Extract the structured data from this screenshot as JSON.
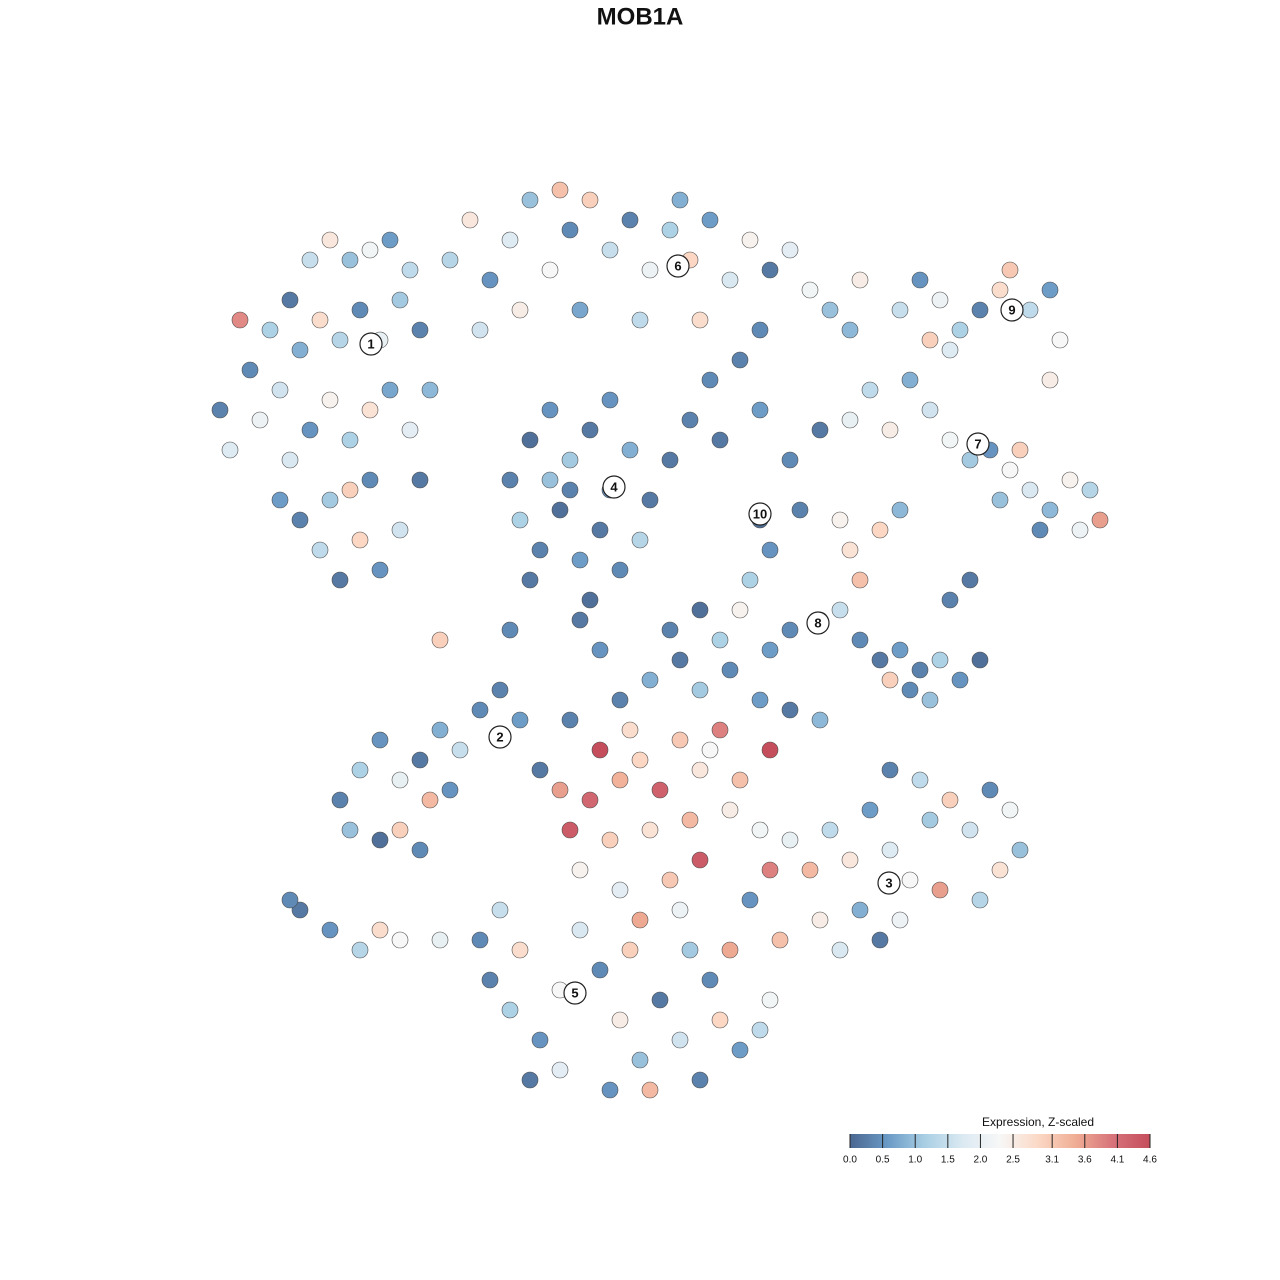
{
  "chart_data": {
    "type": "scatter",
    "title": "MOB1A",
    "colorbar_title": "Expression, Z-scaled",
    "colorbar_ticks": [
      {
        "value": 0,
        "label": "0.0"
      },
      {
        "value": 0.5,
        "label": "0.5"
      },
      {
        "value": 1,
        "label": "1.0"
      },
      {
        "value": 1.5,
        "label": "1.5"
      },
      {
        "value": 2,
        "label": "2.0"
      },
      {
        "value": 2.5,
        "label": "2.5"
      },
      {
        "value": 3.1,
        "label": "3.1"
      },
      {
        "value": 3.6,
        "label": "3.6"
      },
      {
        "value": 4.1,
        "label": "4.1"
      },
      {
        "value": 4.6,
        "label": "4.6"
      }
    ],
    "colors": [
      "#4a6790",
      "#6a9ac6",
      "#a9cfe4",
      "#dbe9f2",
      "#f7f7f7",
      "#fbd9c6",
      "#f0ae95",
      "#d7737a",
      "#c44e5c"
    ],
    "cluster_labels": [
      {
        "text": "1",
        "x": -26.9,
        "y": 29.6
      },
      {
        "text": "2",
        "x": -14,
        "y": -9.7
      },
      {
        "text": "3",
        "x": 24.9,
        "y": -24.3
      },
      {
        "text": "4",
        "x": -2.6,
        "y": 15.3
      },
      {
        "text": "5",
        "x": -6.5,
        "y": -35.3
      },
      {
        "text": "6",
        "x": 3.8,
        "y": 37.4
      },
      {
        "text": "7",
        "x": 33.8,
        "y": 19.6
      },
      {
        "text": "8",
        "x": 17.8,
        "y": 1.7
      },
      {
        "text": "9",
        "x": 37.2,
        "y": 33
      },
      {
        "text": "10",
        "x": 12,
        "y": 12.6
      }
    ],
    "x": [
      -42,
      -41,
      -39,
      -37,
      -35,
      -33,
      -31,
      -29,
      -27,
      -25,
      -23,
      -38,
      -36,
      -34,
      -32,
      -30,
      -28,
      -26,
      -24,
      -22,
      -35,
      -33,
      -31,
      -29,
      -27,
      -25,
      -23,
      -34,
      -32,
      -30,
      -28,
      -26,
      -24,
      -29,
      -31,
      -27,
      -40,
      -21,
      -22,
      -36,
      -19,
      -17,
      -15,
      -13,
      -11,
      -9,
      -7,
      -5,
      -3,
      -1,
      1,
      3,
      5,
      7,
      9,
      11,
      13,
      15,
      17,
      19,
      -12,
      -6,
      0,
      6,
      12,
      -8,
      -16,
      4,
      -13,
      -11,
      -9,
      -7,
      -5,
      -3,
      -1,
      1,
      -12,
      -10,
      -8,
      -6,
      -4,
      -2,
      0,
      -7,
      -11,
      -3,
      -5,
      -9,
      5,
      8,
      12,
      15,
      12,
      13,
      11,
      16,
      18,
      7,
      10,
      3,
      21,
      23,
      25,
      27,
      29,
      31,
      33,
      35,
      37,
      39,
      41,
      43,
      45,
      46,
      44,
      38,
      36,
      40,
      26,
      28,
      30,
      32,
      34,
      36,
      37,
      39,
      41,
      42,
      41,
      29,
      31,
      21,
      20,
      21,
      22,
      20,
      22,
      24,
      26,
      28,
      30,
      32,
      34,
      25,
      27,
      29,
      31,
      33,
      18,
      15,
      13,
      24,
      26,
      -30,
      -28,
      -26,
      -24,
      -22,
      -20,
      -18,
      -16,
      -14,
      -12,
      -10,
      -24,
      -22,
      -26,
      -29,
      -21,
      -14,
      -19,
      -34,
      -31,
      -28,
      -26,
      -24,
      -35,
      -20,
      -4,
      -2,
      0,
      2,
      4,
      6,
      8,
      10,
      13,
      -5,
      -7,
      -3,
      1,
      5,
      9,
      12,
      -6,
      -2,
      3,
      6,
      0,
      4,
      -8,
      -1,
      7,
      15,
      17,
      19,
      21,
      23,
      25,
      27,
      29,
      31,
      33,
      35,
      37,
      38,
      36,
      34,
      30,
      26,
      22,
      18,
      14,
      20,
      24,
      11,
      13,
      25,
      28,
      -2,
      1,
      4,
      6,
      9,
      12,
      15,
      18,
      3,
      6,
      8,
      -4,
      -7,
      10,
      -13,
      -20,
      -6,
      -14,
      -12,
      -15,
      -13,
      -10,
      -8,
      -6,
      -4,
      -2,
      0,
      2,
      4,
      6,
      8,
      10,
      12,
      -11,
      -8,
      -3,
      1,
      5,
      7,
      9,
      13,
      -16,
      -1,
      22
    ],
    "y": [
      23,
      19,
      27,
      31,
      34,
      38,
      40,
      38,
      39,
      40,
      37,
      22,
      25,
      29,
      32,
      30,
      33,
      30,
      34,
      31,
      18,
      21,
      24,
      20,
      23,
      25,
      21,
      12,
      9,
      6,
      10,
      7,
      11,
      15,
      14,
      16,
      32,
      25,
      16,
      14,
      38,
      42,
      36,
      40,
      44,
      37,
      41,
      44,
      39,
      42,
      37,
      41,
      38,
      42,
      36,
      40,
      37,
      39,
      35,
      33,
      33,
      33,
      32,
      32,
      31,
      45,
      31,
      44,
      16,
      20,
      23,
      18,
      21,
      15,
      19,
      14,
      12,
      9,
      13,
      8,
      11,
      7,
      10,
      15,
      6,
      24,
      4,
      16,
      22,
      20,
      23,
      18,
      12,
      9,
      6,
      13,
      21,
      26,
      28,
      18,
      22,
      25,
      21,
      26,
      23,
      20,
      18,
      19,
      17,
      15,
      13,
      16,
      15,
      12,
      11,
      19,
      14,
      11,
      33,
      36,
      34,
      31,
      33,
      35,
      37,
      33,
      35,
      30,
      26,
      30,
      29,
      31,
      12,
      9,
      6,
      3,
      0,
      -2,
      -1,
      -3,
      -2,
      -4,
      -2,
      -4,
      -5,
      -6,
      4,
      6,
      2,
      1,
      -1,
      11,
      13,
      -16,
      -13,
      -10,
      -14,
      -12,
      -9,
      -11,
      -7,
      -5,
      -8,
      -13,
      -19,
      -21,
      -20,
      -19,
      -16,
      -10,
      -15,
      -27,
      -29,
      -31,
      -29,
      -30,
      -26,
      -30,
      -11,
      -14,
      -12,
      -15,
      -10,
      -13,
      -9,
      -14,
      -11,
      -16,
      -19,
      -20,
      -19,
      -18,
      -17,
      -19,
      -23,
      -25,
      -24,
      -22,
      -28,
      -27,
      -15,
      -9,
      -11,
      -20,
      -23,
      -19,
      -22,
      -17,
      -21,
      -24,
      -18,
      -16,
      -19,
      -15,
      -17,
      -21,
      -23,
      -26,
      -25,
      -28,
      -27,
      -28,
      -30,
      -31,
      -30,
      -26,
      -23,
      -13,
      -14,
      -6,
      -4,
      -2,
      -5,
      -3,
      -6,
      -7,
      -8,
      1,
      3,
      0,
      -1,
      -8,
      3,
      1,
      0,
      2,
      -27,
      -31,
      -34,
      -37,
      -40,
      -35,
      -29,
      -33,
      -38,
      -42,
      -36,
      -40,
      -44,
      -38,
      -41,
      -39,
      -44,
      -43,
      -45,
      -45,
      -31,
      -34,
      -31,
      -36,
      -30,
      -31,
      36
    ],
    "values": [
      0.3,
      1.8,
      0.4,
      1.2,
      0.2,
      1.5,
      2.6,
      1.0,
      2.2,
      0.6,
      1.4,
      2.1,
      1.6,
      0.8,
      2.8,
      1.3,
      0.4,
      2.0,
      1.1,
      0.3,
      1.7,
      0.5,
      2.4,
      1.2,
      2.7,
      0.7,
      1.9,
      0.3,
      1.4,
      0.2,
      2.9,
      0.5,
      1.6,
      3.0,
      1.1,
      0.4,
      3.8,
      0.9,
      0.2,
      0.6,
      1.3,
      2.6,
      0.5,
      1.8,
      1.0,
      2.3,
      0.4,
      3.0,
      1.5,
      0.3,
      2.1,
      1.2,
      2.9,
      0.6,
      1.7,
      2.4,
      0.2,
      1.9,
      2.2,
      1.0,
      2.5,
      0.7,
      1.4,
      2.8,
      0.4,
      3.2,
      1.6,
      0.8,
      0.3,
      0.1,
      0.5,
      1.1,
      0.2,
      0.4,
      0.8,
      0.2,
      1.2,
      0.3,
      0.1,
      0.6,
      0.2,
      0.4,
      1.3,
      0.3,
      0.2,
      0.5,
      0.1,
      1.0,
      0.3,
      0.2,
      0.6,
      0.4,
      0.1,
      0.5,
      1.2,
      0.3,
      0.2,
      0.4,
      0.3,
      0.2,
      2.0,
      1.4,
      2.5,
      0.8,
      1.6,
      2.2,
      1.1,
      0.5,
      2.3,
      1.7,
      0.9,
      2.4,
      1.3,
      3.6,
      2.1,
      3.0,
      1.0,
      0.4,
      1.5,
      0.5,
      2.1,
      1.2,
      0.3,
      2.8,
      3.1,
      1.4,
      0.6,
      2.3,
      2.5,
      3.0,
      1.8,
      0.9,
      2.4,
      2.7,
      3.2,
      1.5,
      0.4,
      0.2,
      0.6,
      0.3,
      1.2,
      0.5,
      0.1,
      3.0,
      0.4,
      1.0,
      0.3,
      0.2,
      1.3,
      0.4,
      0.6,
      2.9,
      0.9,
      0.3,
      1.2,
      0.5,
      2.0,
      0.2,
      0.8,
      1.5,
      0.4,
      0.3,
      0.6,
      0.2,
      3.0,
      0.4,
      0.1,
      1.0,
      3.3,
      1.8,
      0.5,
      0.2,
      0.5,
      1.3,
      2.8,
      2.3,
      0.4,
      2.0,
      4.6,
      3.4,
      2.9,
      4.3,
      3.1,
      2.6,
      3.9,
      3.2,
      4.6,
      4.2,
      4.4,
      3.0,
      2.7,
      3.3,
      2.5,
      2.2,
      2.4,
      1.9,
      3.1,
      4.4,
      3.5,
      2.1,
      3.6,
      2.8,
      2.3,
      2.0,
      3.3,
      1.4,
      2.6,
      0.6,
      1.8,
      2.3,
      1.1,
      3.0,
      1.6,
      0.4,
      2.2,
      1.0,
      2.7,
      1.3,
      3.6,
      2.1,
      0.8,
      2.5,
      3.2,
      1.7,
      0.2,
      0.5,
      3.9,
      0.3,
      1.4,
      0.3,
      0.8,
      0.2,
      1.1,
      0.4,
      0.6,
      0.2,
      0.9,
      0.3,
      0.1,
      1.2,
      0.5,
      0.3,
      2.4,
      0.4,
      3.0,
      0.2,
      1.5,
      2.8,
      0.3,
      1.2,
      0.5,
      2.3,
      1.7,
      0.4,
      2.5,
      1.0,
      0.2,
      1.6,
      0.3,
      2.9,
      0.6,
      1.4,
      0.2,
      1.9,
      0.5,
      3.3,
      1.1,
      0.4,
      3.5,
      2.2,
      0.4,
      3.0,
      2.5
    ]
  }
}
